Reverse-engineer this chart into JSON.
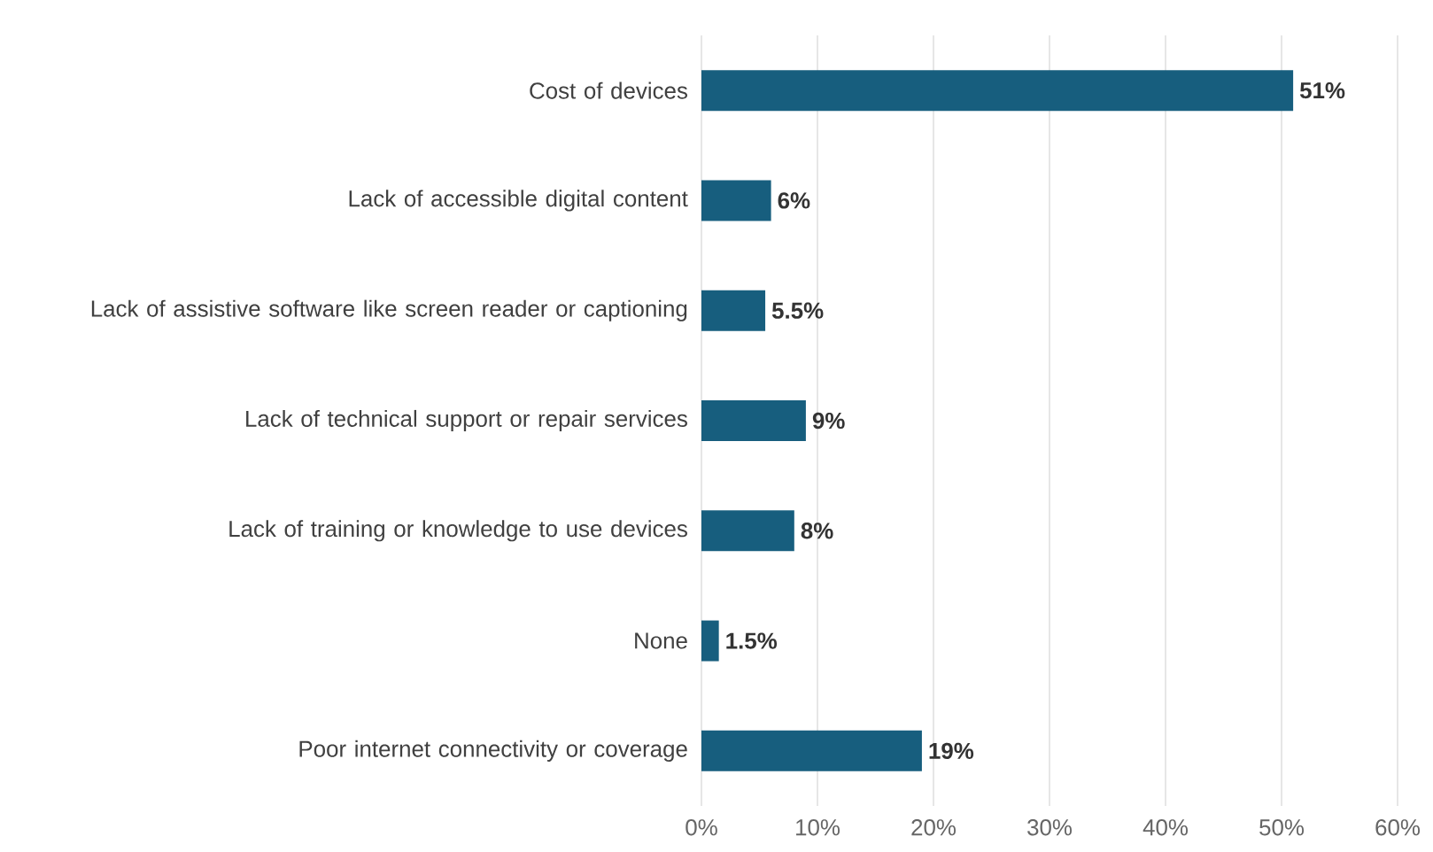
{
  "chart_data": {
    "type": "bar",
    "orientation": "horizontal",
    "categories": [
      "Cost of devices",
      "Lack of accessible digital content",
      "Lack of assistive software like screen reader or captioning",
      "Lack of technical support or repair services",
      "Lack of training or knowledge to use devices",
      "None",
      "Poor internet connectivity or coverage"
    ],
    "values": [
      51,
      6,
      5.5,
      9,
      8,
      1.5,
      19
    ],
    "value_labels": [
      "51%",
      "6%",
      "5.5%",
      "9%",
      "8%",
      "1.5%",
      "19%"
    ],
    "color": "#175e7e",
    "xlim": [
      0,
      60
    ],
    "xticks": [
      {
        "value": 0,
        "label": "0%"
      },
      {
        "value": 10,
        "label": "10%"
      },
      {
        "value": 20,
        "label": "20%"
      },
      {
        "value": 30,
        "label": "30%"
      },
      {
        "value": 40,
        "label": "40%"
      },
      {
        "value": 50,
        "label": "50%"
      },
      {
        "value": 60,
        "label": "60%"
      }
    ],
    "grid": "x"
  }
}
